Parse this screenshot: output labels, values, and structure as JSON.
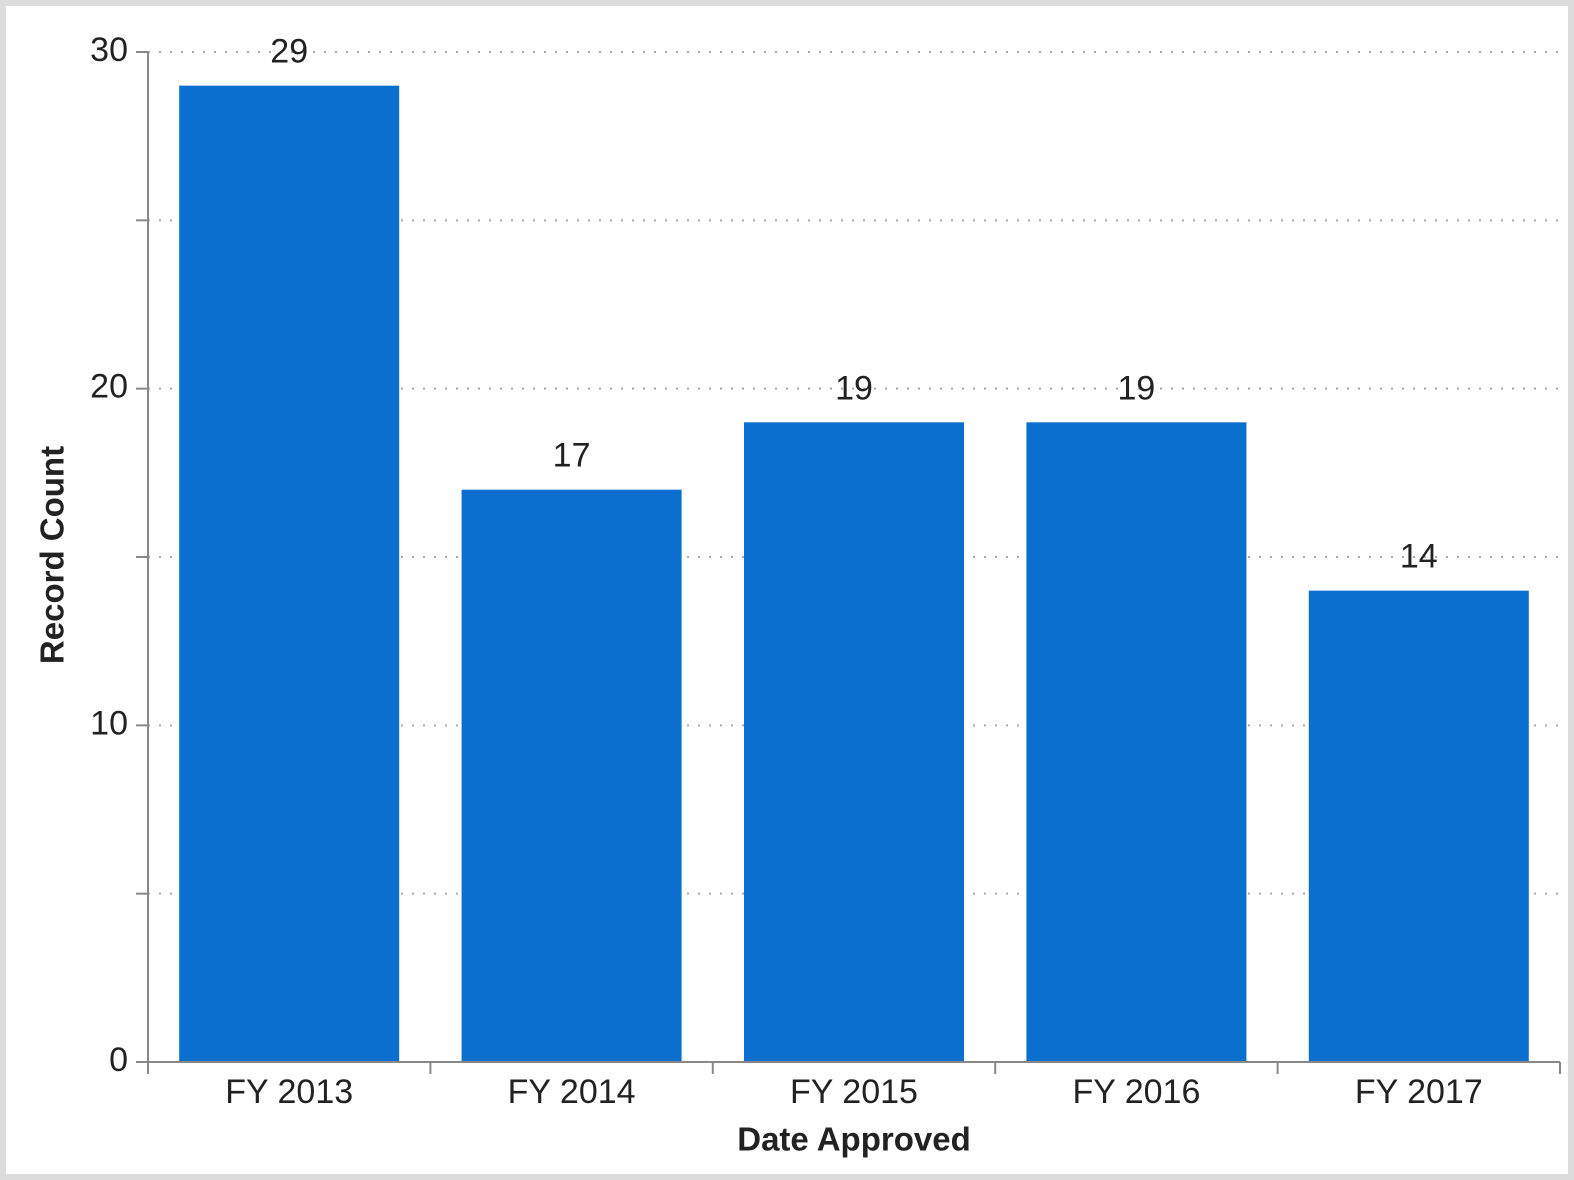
{
  "chart_data": {
    "type": "bar",
    "x_label": "Date Approved",
    "y_label": "Record Count",
    "categories": [
      "FY 2013",
      "FY 2014",
      "FY 2015",
      "FY 2016",
      "FY 2017"
    ],
    "values": [
      29,
      17,
      19,
      19,
      14
    ],
    "color": "#0b6fcf",
    "ylim": [
      0,
      30
    ],
    "yticks": [
      0,
      10,
      20,
      30
    ],
    "minor_yticks": [
      5,
      15,
      25
    ],
    "grid": true
  }
}
